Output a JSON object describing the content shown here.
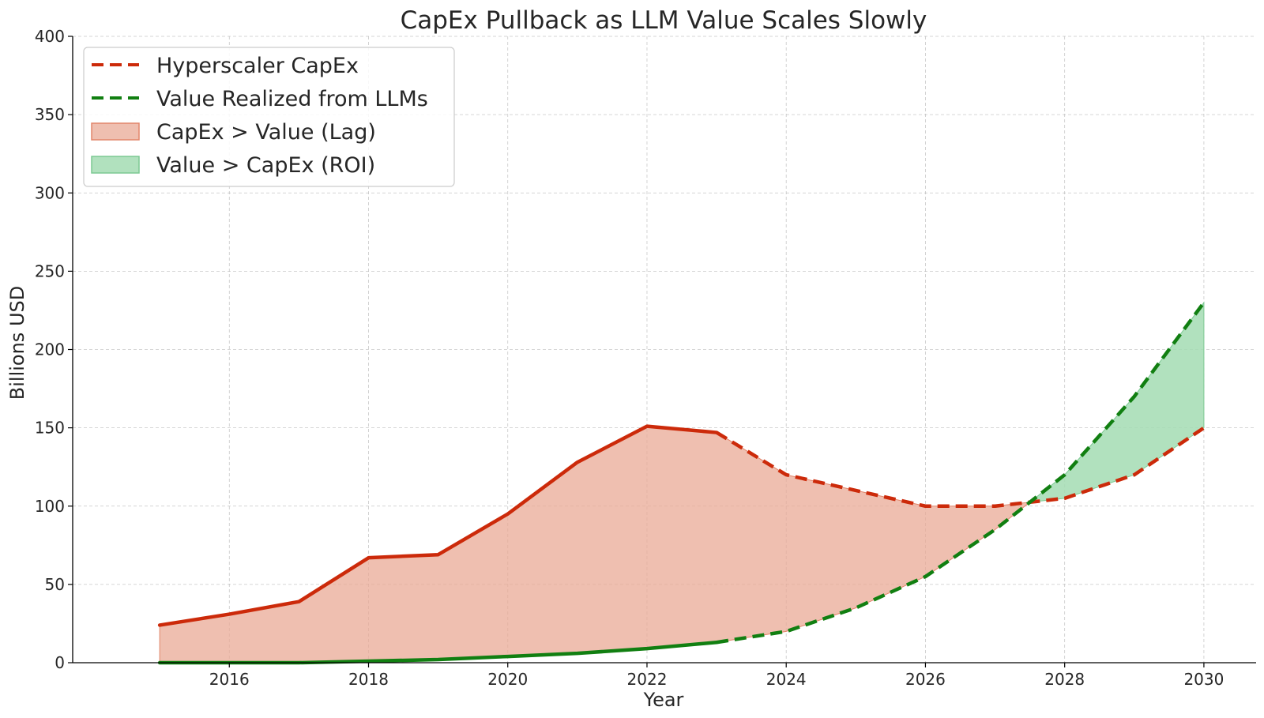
{
  "chart_data": {
    "type": "line",
    "title": "CapEx Pullback as LLM Value Scales Slowly",
    "xlabel": "Year",
    "ylabel": "Billions USD",
    "xlim": [
      2013.75,
      2030.75
    ],
    "ylim": [
      0,
      400
    ],
    "xticks": [
      2016,
      2018,
      2020,
      2022,
      2024,
      2026,
      2028,
      2030
    ],
    "yticks": [
      0,
      50,
      100,
      150,
      200,
      250,
      300,
      350,
      400
    ],
    "grid": true,
    "legend_position": "upper-left",
    "x": [
      2015,
      2016,
      2017,
      2018,
      2019,
      2020,
      2021,
      2022,
      2023,
      2024,
      2025,
      2026,
      2027,
      2028,
      2029,
      2030
    ],
    "projection_start": 2023,
    "series": [
      {
        "name": "Hyperscaler CapEx",
        "color": "#cc2a0a",
        "style": "dashed",
        "values": [
          24,
          31,
          39,
          67,
          69,
          95,
          128,
          151,
          147,
          120,
          110,
          100,
          100,
          105,
          120,
          150
        ]
      },
      {
        "name": "Value Realized from LLMs",
        "color": "#117f11",
        "style": "dashed",
        "values": [
          0,
          0,
          0,
          1,
          2,
          4,
          6,
          9,
          13,
          20,
          35,
          55,
          85,
          120,
          170,
          230
        ]
      }
    ],
    "fills": [
      {
        "name": "CapEx > Value (Lag)",
        "color": "#e9a996",
        "edge": "#e2856a",
        "alpha": 0.75
      },
      {
        "name": "Value > CapEx (ROI)",
        "color": "#a3dcb3",
        "edge": "#7cc992",
        "alpha": 0.85
      }
    ]
  }
}
